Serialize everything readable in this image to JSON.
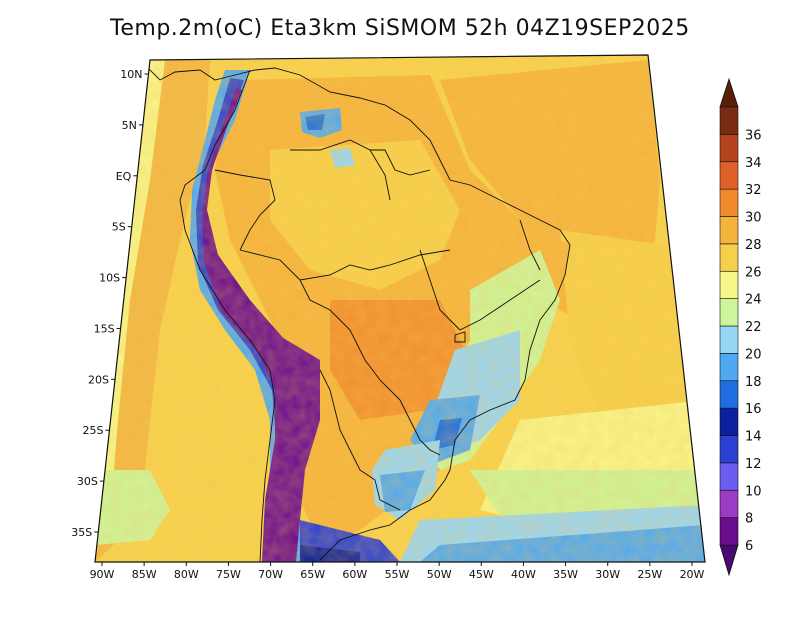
{
  "title": "Temp.2m(oC) Eta3km SiSMOM 52h 04Z19SEP2025",
  "map": {
    "variable": "2 m air temperature",
    "units": "oC",
    "lon_labels": [
      "90W",
      "85W",
      "80W",
      "75W",
      "70W",
      "65W",
      "60W",
      "55W",
      "50W",
      "45W",
      "40W",
      "35W",
      "30W",
      "25W",
      "20W"
    ],
    "lat_labels": [
      "10N",
      "5N",
      "EQ",
      "5S",
      "10S",
      "15S",
      "20S",
      "25S",
      "30S",
      "35S"
    ]
  },
  "colorbar": {
    "labels": [
      "6",
      "8",
      "10",
      "12",
      "14",
      "16",
      "18",
      "20",
      "22",
      "24",
      "26",
      "28",
      "30",
      "32",
      "34",
      "36"
    ],
    "colors": [
      "#6a0d8f",
      "#9a3cc4",
      "#6a5df0",
      "#2b3fd0",
      "#0c1f9c",
      "#1f6fe0",
      "#4fa9f2",
      "#97d6f5",
      "#cdf59a",
      "#f7f68a",
      "#f6d04a",
      "#f4b43c",
      "#f08a2b",
      "#e0602a",
      "#b5431c",
      "#7a2c12"
    ],
    "under_color": "#4a0870",
    "over_color": "#5a1e08"
  }
}
